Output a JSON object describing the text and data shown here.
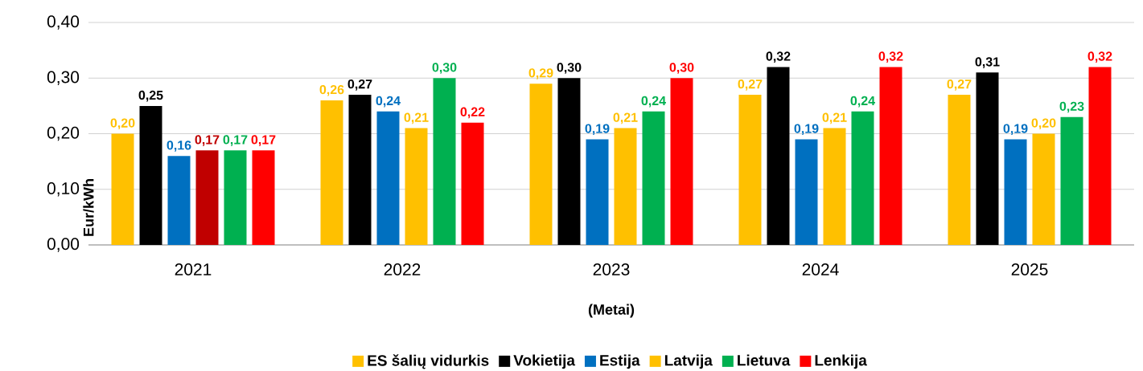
{
  "chart_data": {
    "type": "bar",
    "xlabel": "(Metai)",
    "ylabel": "Eur/kWh",
    "categories": [
      "2021",
      "2022",
      "2023",
      "2024",
      "2025"
    ],
    "ylim": [
      0,
      0.4
    ],
    "yticks": [
      {
        "value": 0,
        "label": "0,00"
      },
      {
        "value": 0.1,
        "label": "0,10"
      },
      {
        "value": 0.2,
        "label": "0,20"
      },
      {
        "value": 0.3,
        "label": "0,30"
      },
      {
        "value": 0.4,
        "label": "0,40"
      }
    ],
    "grid": "y",
    "legend": "bottom",
    "series": [
      {
        "name": "ES šalių vidurkis",
        "color": "#ffc000",
        "values": [
          0.2,
          0.26,
          0.29,
          0.27,
          0.27
        ],
        "value_labels": [
          "0,20",
          "0,26",
          "0,29",
          "0,27",
          "0,27"
        ]
      },
      {
        "name": "Vokietija",
        "color": "#000000",
        "values": [
          0.25,
          0.27,
          0.3,
          0.32,
          0.31
        ],
        "value_labels": [
          "0,25",
          "0,27",
          "0,30",
          "0,32",
          "0,31"
        ]
      },
      {
        "name": "Estija",
        "color": "#0070c0",
        "values": [
          0.16,
          0.24,
          0.19,
          0.19,
          0.19
        ],
        "value_labels": [
          "0,16",
          "0,24",
          "0,19",
          "0,19",
          "0,19"
        ]
      },
      {
        "name": "Latvija",
        "color": "#ffc000",
        "colors": [
          "#c00000",
          "#ffc000",
          "#ffc000",
          "#ffc000",
          "#ffc000"
        ],
        "values": [
          0.17,
          0.21,
          0.21,
          0.21,
          0.2
        ],
        "value_labels": [
          "0,17",
          "0,21",
          "0,21",
          "0,21",
          "0,20"
        ]
      },
      {
        "name": "Lietuva",
        "color": "#00b050",
        "values": [
          0.17,
          0.3,
          0.24,
          0.24,
          0.23
        ],
        "value_labels": [
          "0,17",
          "0,30",
          "0,24",
          "0,24",
          "0,23"
        ]
      },
      {
        "name": "Lenkija",
        "color": "#ff0000",
        "values": [
          0.17,
          0.22,
          0.3,
          0.32,
          0.32
        ],
        "value_labels": [
          "0,17",
          "0,22",
          "0,30",
          "0,32",
          "0,32"
        ]
      }
    ]
  }
}
